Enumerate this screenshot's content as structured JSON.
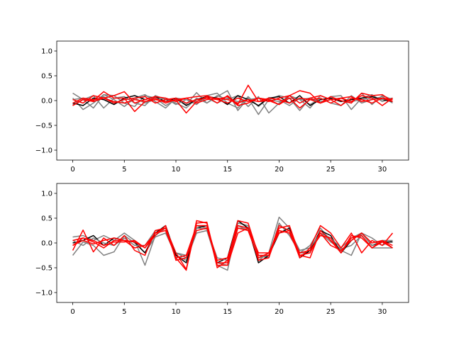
{
  "chart_data": [
    {
      "type": "line",
      "xlim": [
        -1.55,
        32.55
      ],
      "ylim": [
        -1.2,
        1.2
      ],
      "xticks": [
        0,
        5,
        10,
        15,
        20,
        25,
        30
      ],
      "yticks": [
        -1.0,
        -0.5,
        0.0,
        0.5,
        1.0
      ],
      "xtick_labels": [
        "0",
        "5",
        "10",
        "15",
        "20",
        "25",
        "30"
      ],
      "ytick_labels": [
        "−1.0",
        "−0.5",
        "0.0",
        "0.5",
        "1.0"
      ],
      "grid": false,
      "series": [
        {
          "color": "#808080",
          "values": [
            0.15,
            0.02,
            -0.15,
            0.12,
            0.1,
            -0.05,
            -0.12,
            0.1,
            0.05,
            -0.1,
            0.02,
            -0.08,
            0.16,
            -0.05,
            0.08,
            0.2,
            -0.2,
            0.05,
            -0.28,
            0.02,
            0.1,
            0.05,
            -0.2,
            0.05,
            -0.05,
            0.08,
            0.1,
            -0.18,
            0.05,
            0.12,
            -0.02,
            0.05
          ]
        },
        {
          "color": "#808080",
          "values": [
            0.05,
            -0.18,
            -0.05,
            0.12,
            0.02,
            -0.12,
            0.05,
            0.12,
            -0.02,
            -0.15,
            0.05,
            0.02,
            -0.08,
            0.1,
            0.15,
            -0.05,
            -0.15,
            0.08,
            -0.12,
            0.06,
            0.02,
            -0.1,
            0.05,
            -0.08,
            0.05,
            -0.05,
            -0.1,
            0.1,
            -0.05,
            0.02,
            0.08,
            -0.05
          ]
        },
        {
          "color": "#808080",
          "values": [
            -0.08,
            0.02,
            0.1,
            -0.15,
            0.05,
            0.08,
            -0.05,
            -0.1,
            0.1,
            0.02,
            -0.05,
            -0.15,
            0.05,
            -0.05,
            0.1,
            0.02,
            0.1,
            -0.12,
            0.08,
            -0.25,
            -0.05,
            0.1,
            0.02,
            -0.15,
            0.1,
            0.02,
            0.05,
            -0.05,
            0.15,
            -0.08,
            0.1,
            0.02
          ]
        },
        {
          "color": "#000000",
          "values": [
            -0.05,
            -0.1,
            0.05,
            0.02,
            -0.08,
            0.05,
            0.1,
            0.02,
            0.08,
            -0.02,
            0.05,
            -0.1,
            0.02,
            0.08,
            0.05,
            -0.08,
            0.1,
            0.02,
            -0.1,
            0.05,
            0.08,
            -0.05,
            0.1,
            -0.1,
            0.02,
            0.05,
            -0.02,
            0.02,
            0.05,
            0.08,
            0.02,
            -0.02
          ]
        },
        {
          "color": "#808080",
          "values": [
            0.02,
            0.05,
            -0.02,
            0.08,
            -0.05,
            0.02,
            0.05,
            -0.05,
            0.02,
            0.05,
            -0.08,
            0.02,
            -0.02,
            0.05,
            -0.05,
            0.05,
            -0.02,
            0.02,
            0.05,
            0.02,
            -0.02,
            0.05,
            0.02,
            0.05,
            -0.02,
            0.02,
            0.05,
            -0.02,
            0.02,
            0.05,
            0.02,
            0.05
          ]
        },
        {
          "color": "#ff0000",
          "values": [
            -0.1,
            0.02,
            0.0,
            0.18,
            0.05,
            0.05,
            -0.22,
            -0.02,
            0.02,
            -0.02,
            0.01,
            -0.25,
            -0.02,
            0.08,
            -0.05,
            0.1,
            -0.08,
            0.31,
            -0.02,
            0.0,
            -0.08,
            0.1,
            0.2,
            0.15,
            -0.05,
            0.08,
            0.0,
            -0.05,
            0.15,
            0.1,
            0.12,
            -0.02
          ]
        },
        {
          "color": "#ff0000",
          "values": [
            -0.05,
            0.05,
            0.02,
            0.05,
            0.1,
            0.18,
            -0.05,
            0.02,
            0.08,
            0.05,
            -0.02,
            0.05,
            0.08,
            0.1,
            0.02,
            0.08,
            -0.1,
            -0.05,
            0.05,
            -0.02,
            0.05,
            0.1,
            -0.05,
            0.05,
            0.1,
            0.02,
            0.05,
            0.08,
            -0.02,
            0.02,
            0.05,
            0.02
          ]
        },
        {
          "color": "#ff0000",
          "values": [
            0.02,
            -0.05,
            0.1,
            0.05,
            -0.05,
            0.02,
            0.05,
            0.08,
            -0.05,
            0.02,
            0.05,
            -0.05,
            0.02,
            0.05,
            0.02,
            -0.05,
            0.05,
            -0.02,
            0.05,
            0.02,
            -0.08,
            0.05,
            -0.15,
            0.02,
            0.05,
            -0.05,
            0.05,
            -0.02,
            0.1,
            0.05,
            -0.1,
            0.05
          ]
        },
        {
          "color": "#ff0000",
          "values": [
            -0.1,
            0.02,
            -0.02,
            0.05,
            -0.02,
            -0.05,
            0.02,
            -0.02,
            0.05,
            -0.05,
            0.02,
            0.05,
            -0.05,
            0.02,
            0.05,
            0.02,
            -0.05,
            0.02,
            -0.02,
            0.05,
            0.02,
            -0.05,
            0.05,
            0.02,
            -0.05,
            0.02,
            -0.1,
            0.05,
            0.02,
            -0.05,
            0.05,
            -0.02
          ]
        }
      ]
    },
    {
      "type": "line",
      "xlim": [
        -1.55,
        32.55
      ],
      "ylim": [
        -1.2,
        1.2
      ],
      "xticks": [
        0,
        5,
        10,
        15,
        20,
        25,
        30
      ],
      "yticks": [
        -1.0,
        -0.5,
        0.0,
        0.5,
        1.0
      ],
      "xtick_labels": [
        "0",
        "5",
        "10",
        "15",
        "20",
        "25",
        "30"
      ],
      "ytick_labels": [
        "−1.0",
        "−0.5",
        "0.0",
        "0.5",
        "1.0"
      ],
      "grid": false,
      "series": [
        {
          "color": "#808080",
          "values": [
            0.12,
            0.15,
            0.05,
            0.15,
            0.05,
            0.2,
            0.05,
            -0.45,
            0.15,
            0.3,
            -0.2,
            -0.3,
            0.35,
            0.3,
            -0.45,
            -0.55,
            0.4,
            0.35,
            -0.35,
            -0.2,
            0.52,
            0.3,
            -0.2,
            -0.05,
            0.3,
            0.05,
            -0.15,
            -0.25,
            0.2,
            0.1,
            -0.05,
            0.05
          ]
        },
        {
          "color": "#808080",
          "values": [
            -0.25,
            0.02,
            -0.05,
            -0.25,
            -0.18,
            0.15,
            0.0,
            -0.2,
            0.12,
            0.2,
            -0.25,
            -0.35,
            0.2,
            0.25,
            -0.4,
            -0.45,
            0.3,
            0.28,
            -0.25,
            -0.3,
            0.4,
            0.15,
            -0.2,
            -0.2,
            0.2,
            0.02,
            -0.12,
            -0.05,
            0.15,
            -0.1,
            -0.1,
            -0.1
          ]
        },
        {
          "color": "#000000",
          "values": [
            0.0,
            0.05,
            0.15,
            -0.05,
            0.1,
            0.05,
            0.02,
            -0.2,
            0.2,
            0.35,
            -0.25,
            -0.4,
            0.3,
            0.35,
            -0.4,
            -0.3,
            0.45,
            0.3,
            -0.4,
            -0.25,
            0.2,
            0.3,
            -0.3,
            -0.15,
            0.25,
            0.15,
            -0.2,
            0.05,
            0.2,
            -0.05,
            0.02,
            0.02
          ]
        },
        {
          "color": "#808080",
          "values": [
            0.05,
            -0.05,
            0.1,
            0.0,
            -0.05,
            0.1,
            -0.05,
            -0.05,
            0.25,
            0.3,
            -0.2,
            -0.25,
            0.3,
            0.28,
            -0.3,
            -0.35,
            0.35,
            0.25,
            -0.3,
            -0.25,
            0.35,
            0.25,
            -0.15,
            -0.1,
            0.2,
            0.1,
            -0.1,
            0.1,
            0.2,
            -0.05,
            0.05,
            0.05
          ]
        },
        {
          "color": "#ff0000",
          "values": [
            -0.15,
            0.26,
            -0.18,
            0.1,
            -0.05,
            0.15,
            -0.15,
            -0.25,
            0.25,
            0.3,
            -0.2,
            -0.53,
            0.45,
            0.4,
            -0.5,
            -0.35,
            0.45,
            0.4,
            -0.25,
            -0.25,
            0.35,
            0.25,
            -0.3,
            -0.1,
            0.35,
            0.2,
            -0.1,
            0.2,
            -0.2,
            0.05,
            -0.05,
            0.2
          ]
        },
        {
          "color": "#ff0000",
          "values": [
            -0.05,
            0.1,
            0.02,
            -0.1,
            0.05,
            0.05,
            -0.1,
            -0.05,
            0.2,
            0.25,
            -0.3,
            -0.55,
            0.4,
            0.42,
            -0.45,
            -0.45,
            0.2,
            0.3,
            -0.35,
            -0.3,
            0.3,
            0.35,
            -0.25,
            -0.3,
            0.25,
            0.05,
            -0.2,
            0.15,
            0.1,
            -0.1,
            0.02,
            -0.1
          ]
        },
        {
          "color": "#ff0000",
          "values": [
            0.05,
            0.1,
            0.05,
            -0.05,
            0.02,
            0.02,
            0.05,
            -0.1,
            0.15,
            0.35,
            -0.35,
            -0.3,
            0.25,
            0.3,
            -0.4,
            -0.4,
            0.3,
            0.25,
            -0.3,
            -0.2,
            0.2,
            0.25,
            -0.2,
            -0.15,
            0.15,
            0.1,
            -0.2,
            0.1,
            0.15,
            -0.1,
            0.05,
            -0.1
          ]
        },
        {
          "color": "#ff0000",
          "values": [
            -0.05,
            0.05,
            -0.02,
            0.05,
            0.1,
            0.05,
            0.02,
            -0.1,
            0.2,
            0.3,
            -0.3,
            -0.25,
            0.35,
            0.35,
            -0.35,
            -0.3,
            0.35,
            0.3,
            -0.2,
            -0.2,
            0.25,
            0.2,
            -0.25,
            -0.2,
            0.2,
            -0.05,
            -0.15,
            0.05,
            0.2,
            0.0,
            0.05,
            -0.05
          ]
        }
      ]
    }
  ]
}
